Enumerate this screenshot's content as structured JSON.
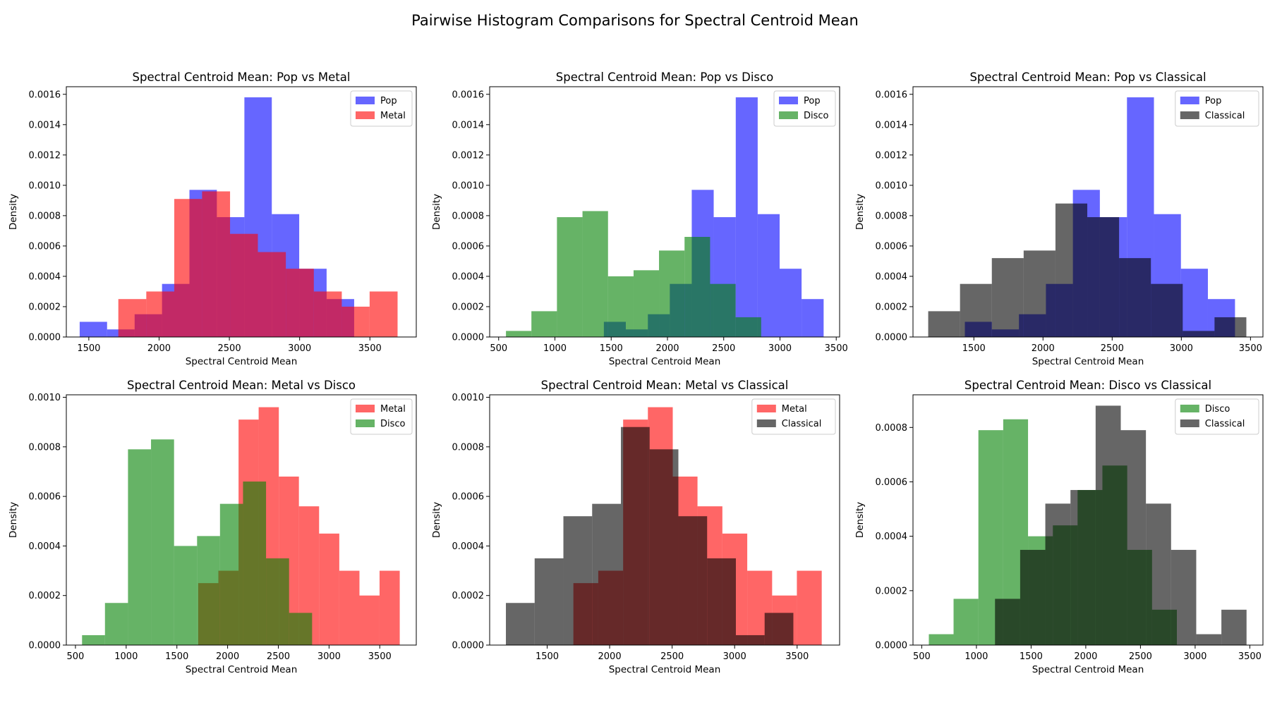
{
  "suptitle": "Pairwise Histogram Comparisons for Spectral Centroid Mean",
  "colors": {
    "Pop": "#0000ff",
    "Metal": "#ff0000",
    "Disco": "#008000",
    "Classical": "#000000"
  },
  "alpha": 0.6,
  "chart_data": [
    {
      "type": "histogram",
      "title": "Spectral Centroid Mean: Pop vs Metal",
      "xlabel": "Spectral Centroid Mean",
      "ylabel": "Density",
      "xlim": [
        1340,
        3830
      ],
      "ylim": [
        0,
        0.00165
      ],
      "xticks": [
        1500,
        2000,
        2500,
        3000,
        3500
      ],
      "yticks": [
        0,
        0.0002,
        0.0004,
        0.0006,
        0.0008,
        0.001,
        0.0012,
        0.0014,
        0.0016
      ],
      "ytick_labels": [
        "0.0000",
        "0.0002",
        "0.0004",
        "0.0006",
        "0.0008",
        "0.0010",
        "0.0012",
        "0.0014",
        "0.0016"
      ],
      "legend_position": "top-right",
      "series": [
        {
          "name": "Pop",
          "edges": [
            1435,
            1630,
            1826,
            2021,
            2216,
            2411,
            2607,
            2802,
            2997,
            3192,
            3388
          ],
          "values": [
            0.0001,
            5e-05,
            0.00015,
            0.00035,
            0.00097,
            0.00079,
            0.00158,
            0.00081,
            0.00045,
            0.00025
          ]
        },
        {
          "name": "Metal",
          "edges": [
            1710,
            1909,
            2108,
            2306,
            2505,
            2703,
            2902,
            3101,
            3300,
            3498,
            3697
          ],
          "values": [
            0.00025,
            0.0003,
            0.00091,
            0.00096,
            0.00068,
            0.00056,
            0.00045,
            0.0003,
            0.0002,
            0.0003
          ]
        }
      ]
    },
    {
      "type": "histogram",
      "title": "Spectral Centroid Mean: Pop vs Disco",
      "xlabel": "Spectral Centroid Mean",
      "ylabel": "Density",
      "xlim": [
        420,
        3530
      ],
      "ylim": [
        0,
        0.00165
      ],
      "xticks": [
        500,
        1000,
        1500,
        2000,
        2500,
        3000,
        3500
      ],
      "yticks": [
        0,
        0.0002,
        0.0004,
        0.0006,
        0.0008,
        0.001,
        0.0012,
        0.0014,
        0.0016
      ],
      "ytick_labels": [
        "0.0000",
        "0.0002",
        "0.0004",
        "0.0006",
        "0.0008",
        "0.0010",
        "0.0012",
        "0.0014",
        "0.0016"
      ],
      "legend_position": "top-right",
      "series": [
        {
          "name": "Pop",
          "edges": [
            1435,
            1630,
            1826,
            2021,
            2216,
            2411,
            2607,
            2802,
            2997,
            3192,
            3388
          ],
          "values": [
            0.0001,
            5e-05,
            0.00015,
            0.00035,
            0.00097,
            0.00079,
            0.00158,
            0.00081,
            0.00045,
            0.00025
          ]
        },
        {
          "name": "Disco",
          "edges": [
            565,
            791,
            1018,
            1245,
            1472,
            1699,
            1925,
            2152,
            2379,
            2606,
            2833
          ],
          "values": [
            4e-05,
            0.00017,
            0.00079,
            0.00083,
            0.0004,
            0.00044,
            0.00057,
            0.00066,
            0.00035,
            0.00013
          ]
        }
      ]
    },
    {
      "type": "histogram",
      "title": "Spectral Centroid Mean: Pop vs Classical",
      "xlabel": "Spectral Centroid Mean",
      "ylabel": "Density",
      "xlim": [
        1060,
        3590
      ],
      "ylim": [
        0,
        0.00165
      ],
      "xticks": [
        1500,
        2000,
        2500,
        3000,
        3500
      ],
      "yticks": [
        0,
        0.0002,
        0.0004,
        0.0006,
        0.0008,
        0.001,
        0.0012,
        0.0014,
        0.0016
      ],
      "ytick_labels": [
        "0.0000",
        "0.0002",
        "0.0004",
        "0.0006",
        "0.0008",
        "0.0010",
        "0.0012",
        "0.0014",
        "0.0016"
      ],
      "legend_position": "top-right",
      "series": [
        {
          "name": "Pop",
          "edges": [
            1435,
            1630,
            1826,
            2021,
            2216,
            2411,
            2607,
            2802,
            2997,
            3192,
            3388
          ],
          "values": [
            0.0001,
            5e-05,
            0.00015,
            0.00035,
            0.00097,
            0.00079,
            0.00158,
            0.00081,
            0.00045,
            0.00025
          ]
        },
        {
          "name": "Classical",
          "edges": [
            1170,
            1400,
            1630,
            1860,
            2090,
            2320,
            2550,
            2780,
            3010,
            3240,
            3470
          ],
          "values": [
            0.00017,
            0.00035,
            0.00052,
            0.00057,
            0.00088,
            0.00079,
            0.00052,
            0.00035,
            4e-05,
            0.00013
          ]
        }
      ]
    },
    {
      "type": "histogram",
      "title": "Spectral Centroid Mean: Metal vs Disco",
      "xlabel": "Spectral Centroid Mean",
      "ylabel": "Density",
      "xlim": [
        410,
        3860
      ],
      "ylim": [
        0,
        0.00101
      ],
      "xticks": [
        500,
        1000,
        1500,
        2000,
        2500,
        3000,
        3500
      ],
      "yticks": [
        0,
        0.0002,
        0.0004,
        0.0006,
        0.0008,
        0.001
      ],
      "ytick_labels": [
        "0.0000",
        "0.0002",
        "0.0004",
        "0.0006",
        "0.0008",
        "0.0010"
      ],
      "legend_position": "top-right",
      "series": [
        {
          "name": "Metal",
          "edges": [
            1710,
            1909,
            2108,
            2306,
            2505,
            2703,
            2902,
            3101,
            3300,
            3498,
            3697
          ],
          "values": [
            0.00025,
            0.0003,
            0.00091,
            0.00096,
            0.00068,
            0.00056,
            0.00045,
            0.0003,
            0.0002,
            0.0003
          ]
        },
        {
          "name": "Disco",
          "edges": [
            565,
            791,
            1018,
            1245,
            1472,
            1699,
            1925,
            2152,
            2379,
            2606,
            2833
          ],
          "values": [
            4e-05,
            0.00017,
            0.00079,
            0.00083,
            0.0004,
            0.00044,
            0.00057,
            0.00066,
            0.00035,
            0.00013
          ]
        }
      ]
    },
    {
      "type": "histogram",
      "title": "Spectral Centroid Mean: Metal vs Classical",
      "xlabel": "Spectral Centroid Mean",
      "ylabel": "Density",
      "xlim": [
        1040,
        3840
      ],
      "ylim": [
        0,
        0.00101
      ],
      "xticks": [
        1500,
        2000,
        2500,
        3000,
        3500
      ],
      "yticks": [
        0,
        0.0002,
        0.0004,
        0.0006,
        0.0008,
        0.001
      ],
      "ytick_labels": [
        "0.0000",
        "0.0002",
        "0.0004",
        "0.0006",
        "0.0008",
        "0.0010"
      ],
      "legend_position": "top-right",
      "series": [
        {
          "name": "Metal",
          "edges": [
            1710,
            1909,
            2108,
            2306,
            2505,
            2703,
            2902,
            3101,
            3300,
            3498,
            3697
          ],
          "values": [
            0.00025,
            0.0003,
            0.00091,
            0.00096,
            0.00068,
            0.00056,
            0.00045,
            0.0003,
            0.0002,
            0.0003
          ]
        },
        {
          "name": "Classical",
          "edges": [
            1170,
            1400,
            1630,
            1860,
            2090,
            2320,
            2550,
            2780,
            3010,
            3240,
            3470
          ],
          "values": [
            0.00017,
            0.00035,
            0.00052,
            0.00057,
            0.00088,
            0.00079,
            0.00052,
            0.00035,
            4e-05,
            0.00013
          ]
        }
      ]
    },
    {
      "type": "histogram",
      "title": "Spectral Centroid Mean: Disco vs Classical",
      "xlabel": "Spectral Centroid Mean",
      "ylabel": "Density",
      "xlim": [
        420,
        3620
      ],
      "ylim": [
        0,
        0.00092
      ],
      "xticks": [
        500,
        1000,
        1500,
        2000,
        2500,
        3000,
        3500
      ],
      "yticks": [
        0,
        0.0002,
        0.0004,
        0.0006,
        0.0008
      ],
      "ytick_labels": [
        "0.0000",
        "0.0002",
        "0.0004",
        "0.0006",
        "0.0008"
      ],
      "legend_position": "top-right",
      "series": [
        {
          "name": "Disco",
          "edges": [
            565,
            791,
            1018,
            1245,
            1472,
            1699,
            1925,
            2152,
            2379,
            2606,
            2833
          ],
          "values": [
            4e-05,
            0.00017,
            0.00079,
            0.00083,
            0.0004,
            0.00044,
            0.00057,
            0.00066,
            0.00035,
            0.00013
          ]
        },
        {
          "name": "Classical",
          "edges": [
            1170,
            1400,
            1630,
            1860,
            2090,
            2320,
            2550,
            2780,
            3010,
            3240,
            3470
          ],
          "values": [
            0.00017,
            0.00035,
            0.00052,
            0.00057,
            0.00088,
            0.00079,
            0.00052,
            0.00035,
            4e-05,
            0.00013
          ]
        }
      ]
    }
  ]
}
